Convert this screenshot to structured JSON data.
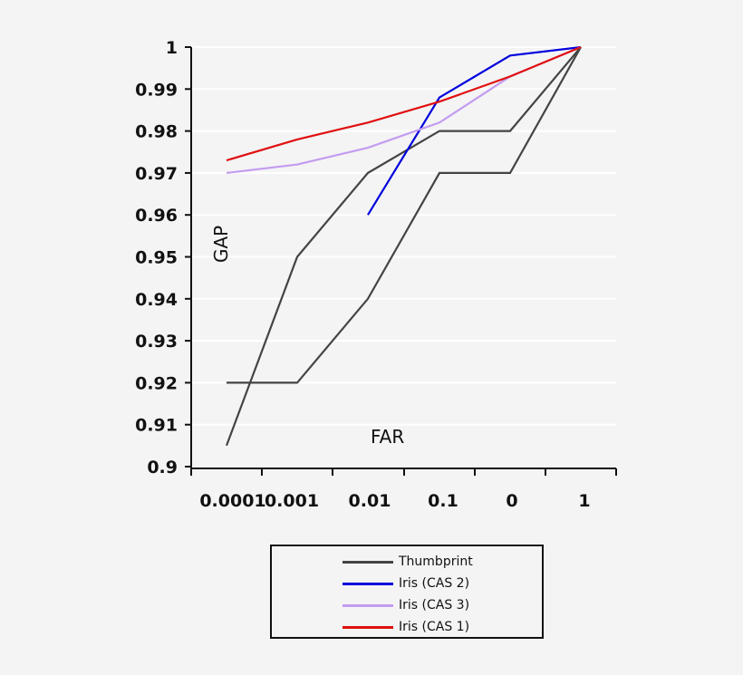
{
  "chart_data": {
    "type": "line",
    "title": "",
    "xlabel": "FAR",
    "ylabel": "GAP",
    "categories": [
      "0.0001",
      "0.001",
      "0.01",
      "0.1",
      "0",
      "1"
    ],
    "ylim": [
      0.9,
      1.0
    ],
    "yticks": [
      "0.9",
      "0.91",
      "0.92",
      "0.93",
      "0.94",
      "0.95",
      "0.96",
      "0.97",
      "0.98",
      "0.99",
      "1"
    ],
    "grid": true,
    "legend_position": "bottom",
    "series": [
      {
        "name": "Thumbprint",
        "color": "#444444",
        "values": [
          0.905,
          0.95,
          0.97,
          0.98,
          0.98,
          1.0
        ]
      },
      {
        "name": "Thumbprint",
        "color": "#444444",
        "values": [
          0.92,
          0.92,
          0.94,
          0.97,
          0.97,
          1.0
        ]
      },
      {
        "name": "Iris (CAS 2)",
        "color": "#0000dd",
        "values": [
          null,
          null,
          0.96,
          0.988,
          0.998,
          1.0
        ]
      },
      {
        "name": "Iris (CAS 3)",
        "color": "#c39cf0",
        "values": [
          0.97,
          0.972,
          0.976,
          0.982,
          0.993,
          1.0
        ]
      },
      {
        "name": "Iris (CAS 1)",
        "color": "#e01010",
        "values": [
          0.973,
          0.978,
          0.982,
          0.987,
          0.993,
          1.0
        ]
      }
    ]
  },
  "legend": [
    {
      "label": "Thumbprint",
      "color": "#444444"
    },
    {
      "label": "Iris (CAS 2)",
      "color": "#0000dd"
    },
    {
      "label": "Iris (CAS 3)",
      "color": "#c39cf0"
    },
    {
      "label": "Iris (CAS 1)",
      "color": "#e01010"
    }
  ]
}
